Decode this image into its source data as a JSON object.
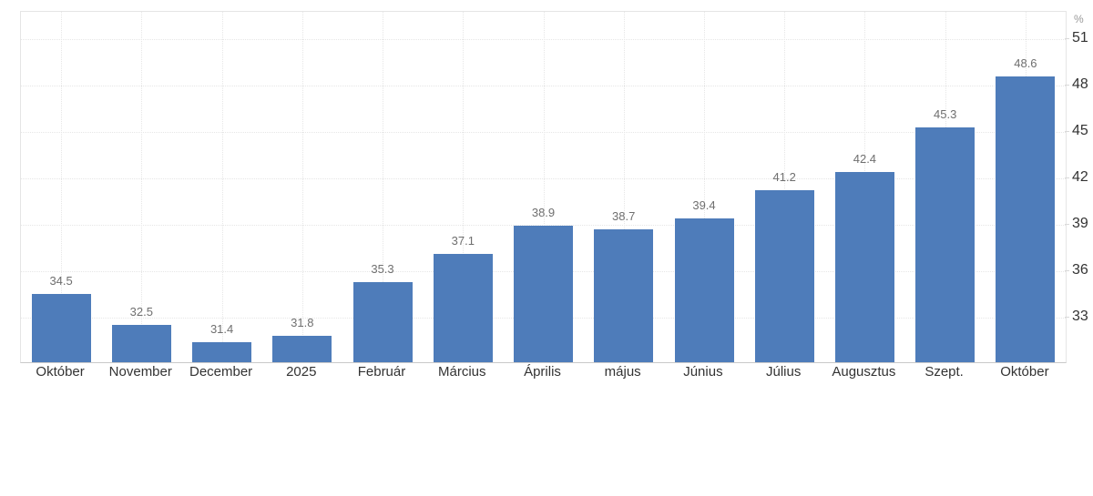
{
  "chart_data": {
    "type": "bar",
    "title": "",
    "unit_label": "%",
    "categories": [
      "Október",
      "November",
      "December",
      "2025",
      "Február",
      "Március",
      "Április",
      "május",
      "Június",
      "Július",
      "Augusztus",
      "Szept.",
      "Október"
    ],
    "values": [
      34.5,
      32.5,
      31.4,
      31.8,
      35.3,
      37.1,
      38.9,
      38.7,
      39.4,
      41.2,
      42.4,
      45.3,
      48.6
    ],
    "data_labels": [
      "34.5",
      "32.5",
      "31.4",
      "31.8",
      "35.3",
      "37.1",
      "38.9",
      "38.7",
      "39.4",
      "41.2",
      "42.4",
      "45.3",
      "48.6"
    ],
    "yticks": [
      33,
      36,
      39,
      42,
      45,
      48,
      51
    ],
    "ytick_labels": [
      "33",
      "36",
      "39",
      "42",
      "45",
      "48",
      "51"
    ],
    "ylim": [
      30.1,
      52.75
    ],
    "grid": true,
    "legend": "none",
    "bar_color": "#4e7cba"
  },
  "colors": {
    "bar": "#4e7cba",
    "grid": "#e6e6e6",
    "plot_border": "#e5e5e5",
    "axis_line": "#c9c9c9",
    "tick_mark": "#d9d9d9",
    "value_label": "#6f6f6f",
    "axis_label": "#333333",
    "unit_label": "#999999",
    "background": "#ffffff"
  }
}
